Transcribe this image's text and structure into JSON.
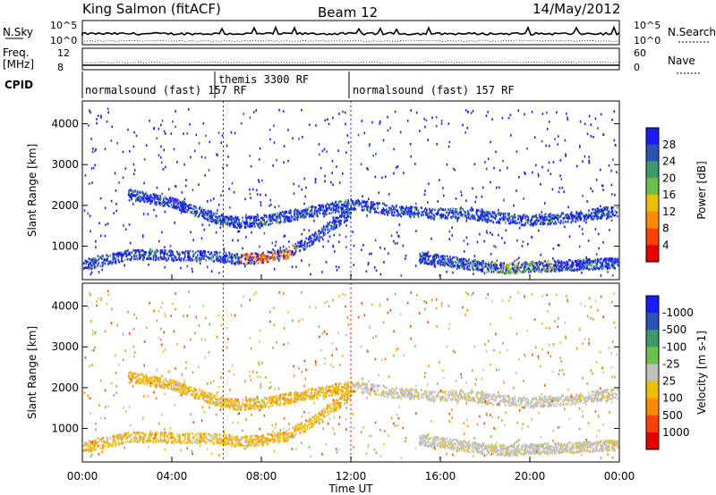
{
  "header": {
    "title": "King Salmon (fitACF)",
    "beam": "Beam 12",
    "date": "14/May/2012"
  },
  "strips": {
    "nsky": {
      "label": "N.Sky",
      "ticks": [
        "10^5",
        "10^0"
      ]
    },
    "nsearch": {
      "label": "N.Search",
      "ticks": [
        "10^5",
        "10^0"
      ]
    },
    "freq": {
      "label_line1": "Freq.",
      "label_line2": "[MHz]",
      "ticks": [
        "12",
        "8"
      ]
    },
    "nave": {
      "label": "Nave",
      "ticks": [
        "60",
        "0"
      ]
    },
    "cpid": {
      "label": "CPID",
      "segments": [
        {
          "label": "normalsound (fast) 157 RF",
          "start": 0,
          "end": 6.3
        },
        {
          "label": "themis 3300 RF",
          "start": 6.3,
          "end": 12
        },
        {
          "label": "normalsound (fast) 157 RF",
          "start": 12,
          "end": 24
        }
      ]
    }
  },
  "chart_data": [
    {
      "type": "heatmap",
      "name": "power",
      "ylabel": "Slant Range [km]",
      "xlim": [
        0,
        24
      ],
      "ylim": [
        180,
        4560
      ],
      "yticks": [
        "1000",
        "2000",
        "3000",
        "4000"
      ],
      "colorbar": {
        "label": "Power [dB]",
        "ticks": [
          "4",
          "8",
          "12",
          "16",
          "20",
          "24",
          "28"
        ],
        "colors": [
          "#1a1aff",
          "#2a55b5",
          "#3d9a6a",
          "#6cc24a",
          "#f0c000",
          "#ff8a00",
          "#ff4000",
          "#e60000"
        ]
      },
      "bands": [
        {
          "t": [
            0,
            1,
            2,
            3,
            4,
            5,
            6,
            7,
            8,
            9,
            10,
            11,
            12
          ],
          "r": [
            560,
            680,
            800,
            820,
            800,
            790,
            780,
            700,
            740,
            820,
            1100,
            1500,
            1850
          ]
        },
        {
          "t": [
            2,
            3,
            4,
            5,
            6,
            7,
            8,
            9,
            10,
            11,
            12
          ],
          "r": [
            2300,
            2200,
            2100,
            1900,
            1700,
            1600,
            1650,
            1750,
            1850,
            1950,
            2050
          ]
        },
        {
          "t": [
            12,
            14,
            16,
            17,
            18,
            20,
            22,
            24
          ],
          "r": [
            2050,
            1900,
            1800,
            1850,
            1750,
            1650,
            1750,
            1900
          ]
        },
        {
          "t": [
            15,
            17,
            18,
            19,
            20,
            22,
            24
          ],
          "r": [
            750,
            600,
            520,
            480,
            520,
            560,
            620
          ]
        }
      ]
    },
    {
      "type": "heatmap",
      "name": "velocity",
      "ylabel": "Slant Range [km]",
      "xlabel": "Time UT",
      "xlim": [
        0,
        24
      ],
      "ylim": [
        180,
        4560
      ],
      "xticks": [
        "00:00",
        "04:00",
        "08:00",
        "12:00",
        "16:00",
        "20:00",
        "00:00"
      ],
      "yticks": [
        "1000",
        "2000",
        "3000",
        "4000"
      ],
      "colorbar": {
        "label": "Velocity [m s-1]",
        "ticks": [
          "1000",
          "500",
          "100",
          "25",
          "-25",
          "-100",
          "-500",
          "-1000"
        ],
        "colors": [
          "#1a1aff",
          "#2a55b5",
          "#3d9a6a",
          "#6cc24a",
          "#c0c0c0",
          "#f0c000",
          "#ff8a00",
          "#ff4000",
          "#e60000"
        ]
      }
    }
  ]
}
